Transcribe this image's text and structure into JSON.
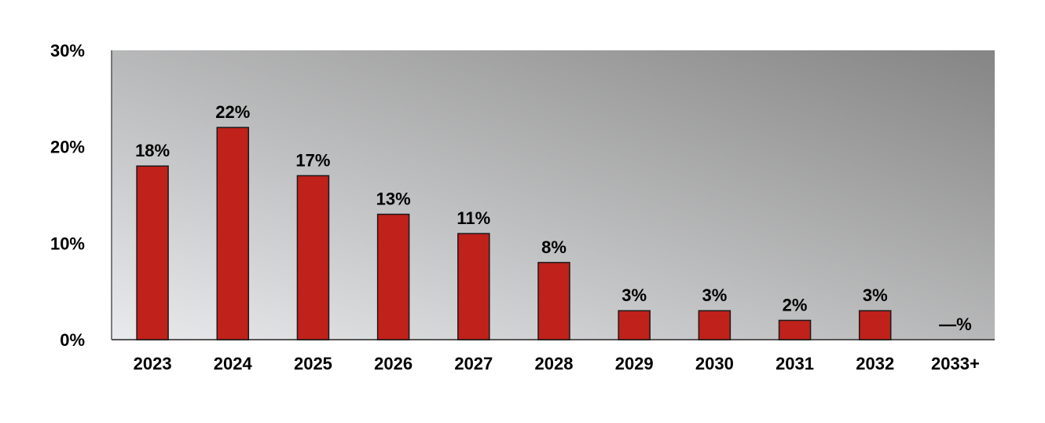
{
  "chart_data": {
    "type": "bar",
    "categories": [
      "2023",
      "2024",
      "2025",
      "2026",
      "2027",
      "2028",
      "2029",
      "2030",
      "2031",
      "2032",
      "2033+"
    ],
    "values": [
      18,
      22,
      17,
      13,
      11,
      8,
      3,
      3,
      2,
      3,
      0
    ],
    "data_labels": [
      "18%",
      "22%",
      "17%",
      "13%",
      "11%",
      "8%",
      "3%",
      "3%",
      "2%",
      "3%",
      "—%"
    ],
    "y_ticks": [
      0,
      10,
      20,
      30
    ],
    "y_tick_labels": [
      "0%",
      "10%",
      "20%",
      "30%"
    ],
    "ylim": [
      0,
      30
    ],
    "title": "",
    "xlabel": "",
    "ylabel": "",
    "grid": false,
    "legend": "none",
    "colors": {
      "bar": "#C0211A",
      "bar_stroke": "#1a1a1a",
      "plot_bg_light": "#e9eaec",
      "plot_bg_dark": "#858585",
      "axis": "#555555"
    }
  }
}
